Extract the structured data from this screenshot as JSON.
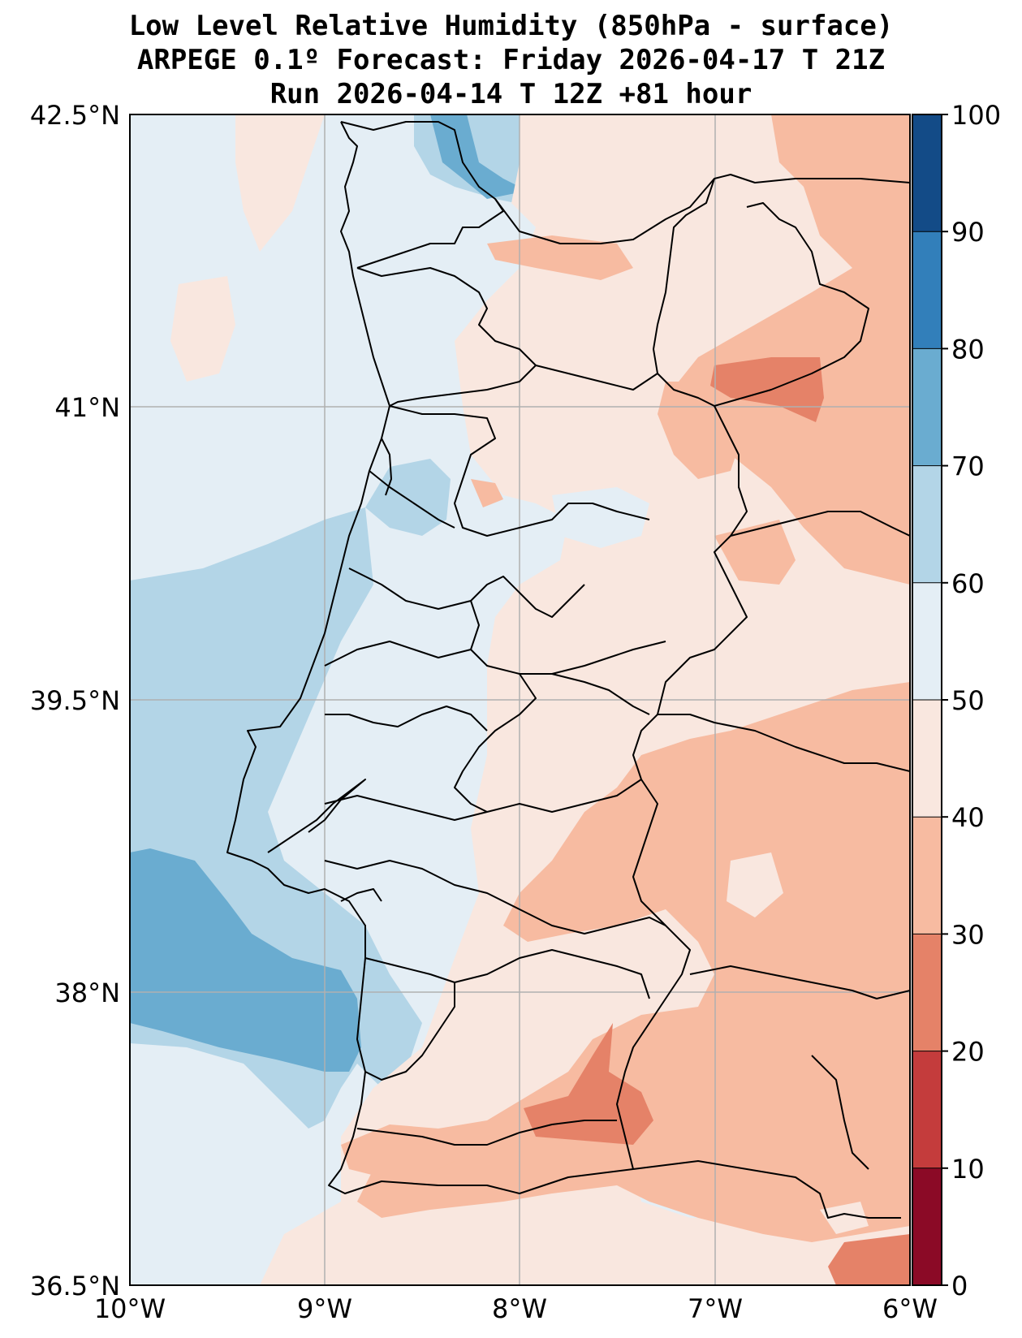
{
  "title": {
    "line1": "Low Level Relative Humidity (850hPa - surface)",
    "line2": "ARPEGE 0.1º Forecast: Friday 2026-04-17 T 21Z",
    "line3": "Run 2026-04-14 T 12Z +81 hour"
  },
  "map": {
    "lat_ticks": [
      {
        "value": 42.5,
        "label": "42.5°N"
      },
      {
        "value": 41.0,
        "label": "41°N"
      },
      {
        "value": 39.5,
        "label": "39.5°N"
      },
      {
        "value": 38.0,
        "label": "38°N"
      },
      {
        "value": 36.5,
        "label": "36.5°N"
      }
    ],
    "lon_ticks": [
      {
        "value": -10,
        "label": "10°W"
      },
      {
        "value": -9,
        "label": "9°W"
      },
      {
        "value": -8,
        "label": "8°W"
      },
      {
        "value": -7,
        "label": "7°W"
      },
      {
        "value": -6,
        "label": "6°W"
      }
    ],
    "lon_range": [
      -10,
      -6
    ],
    "lat_range": [
      36.5,
      42.5
    ]
  },
  "colorbar": {
    "min": 0,
    "max": 100,
    "levels": [
      {
        "from": 0,
        "to": 10,
        "color": "#8b0a26"
      },
      {
        "from": 10,
        "to": 20,
        "color": "#c43c3c"
      },
      {
        "from": 20,
        "to": 30,
        "color": "#e58268"
      },
      {
        "from": 30,
        "to": 40,
        "color": "#f7bba1"
      },
      {
        "from": 40,
        "to": 50,
        "color": "#f9e7df"
      },
      {
        "from": 50,
        "to": 60,
        "color": "#e4eef5"
      },
      {
        "from": 60,
        "to": 70,
        "color": "#b3d5e7"
      },
      {
        "from": 70,
        "to": 80,
        "color": "#6aacd0"
      },
      {
        "from": 80,
        "to": 90,
        "color": "#327fba"
      },
      {
        "from": 90,
        "to": 100,
        "color": "#134b87"
      }
    ],
    "tick_labels": [
      "0",
      "10",
      "20",
      "30",
      "40",
      "50",
      "60",
      "70",
      "80",
      "90",
      "100"
    ]
  }
}
